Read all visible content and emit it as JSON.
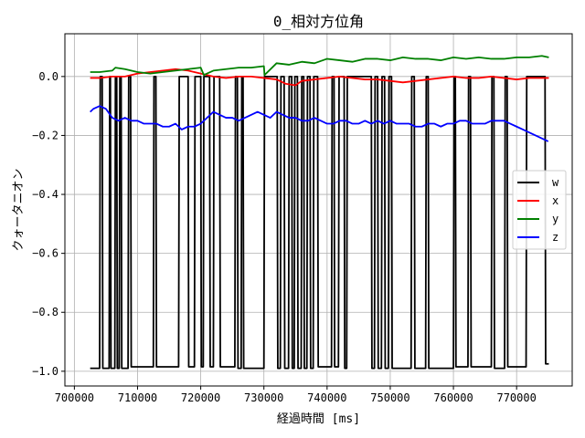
{
  "chart_data": {
    "type": "line",
    "title": "0_相対方位角",
    "xlabel": "経過時間 [ms]",
    "ylabel": "クォータニオン",
    "xlim": [
      698500,
      778800
    ],
    "ylim": [
      -1.05,
      0.145
    ],
    "x_ticks": [
      700000,
      710000,
      720000,
      730000,
      740000,
      750000,
      760000,
      770000
    ],
    "x_tick_labels": [
      "700000",
      "710000",
      "720000",
      "730000",
      "740000",
      "750000",
      "760000",
      "770000"
    ],
    "y_ticks": [
      0.0,
      -0.2,
      -0.4,
      -0.6,
      -0.8,
      -1.0
    ],
    "y_tick_labels": [
      "0.0",
      "−0.2",
      "−0.4",
      "−0.6",
      "−0.8",
      "−1.0"
    ],
    "grid": true,
    "legend_position": "center-right",
    "series": [
      {
        "name": "w",
        "color": "#000000",
        "x": [
          702500,
          704000,
          704100,
          704400,
          704500,
          705500,
          705600,
          705700,
          705800,
          706400,
          706500,
          706700,
          706800,
          707100,
          707200,
          707400,
          707500,
          708500,
          708600,
          708900,
          709000,
          712500,
          712600,
          712900,
          713000,
          716500,
          716600,
          718000,
          718100,
          719000,
          719100,
          720000,
          720100,
          720400,
          720500,
          721400,
          721500,
          722000,
          722100,
          723000,
          723100,
          725400,
          725500,
          725800,
          725900,
          726400,
          726500,
          726700,
          726800,
          730000,
          730100,
          732100,
          732200,
          732600,
          732700,
          733200,
          733300,
          733900,
          734000,
          734400,
          734500,
          734800,
          734900,
          735300,
          735400,
          735900,
          736000,
          736300,
          736400,
          736800,
          736900,
          737300,
          737400,
          737800,
          737900,
          738500,
          738600,
          740700,
          740800,
          741100,
          741200,
          741800,
          741900,
          742700,
          742800,
          743100,
          743200,
          747000,
          747100,
          747500,
          747600,
          748000,
          748100,
          748600,
          748700,
          749100,
          749200,
          749700,
          749800,
          750200,
          750300,
          753300,
          753400,
          753800,
          753900,
          755600,
          755700,
          756000,
          756100,
          760000,
          760100,
          760300,
          760400,
          762300,
          762400,
          762700,
          762800,
          766000,
          766100,
          766400,
          766500,
          768100,
          768200,
          768500,
          768600,
          771500,
          771600,
          774500,
          774600,
          775100
        ],
        "y": [
          -0.99,
          -0.99,
          0.0,
          0.0,
          -0.99,
          -0.99,
          0.0,
          0.0,
          -0.99,
          -0.99,
          0.0,
          0.0,
          -0.99,
          -0.99,
          0.0,
          0.0,
          -0.99,
          -0.99,
          0.0,
          0.0,
          -0.985,
          -0.985,
          0.0,
          0.0,
          -0.985,
          -0.985,
          0.0,
          0.0,
          -0.985,
          -0.985,
          0.0,
          0.0,
          -0.985,
          -0.985,
          0.0,
          0.0,
          -0.985,
          -0.985,
          0.0,
          0.0,
          -0.985,
          -0.985,
          0.0,
          0.0,
          -0.99,
          -0.99,
          0.0,
          0.0,
          -0.99,
          -0.99,
          0.0,
          0.0,
          -0.99,
          -0.99,
          0.0,
          0.0,
          -0.99,
          -0.99,
          0.0,
          0.0,
          -0.99,
          -0.99,
          0.0,
          0.0,
          -0.99,
          -0.99,
          0.0,
          0.0,
          -0.99,
          -0.99,
          0.0,
          0.0,
          -0.99,
          -0.99,
          0.0,
          0.0,
          -0.985,
          -0.985,
          0.0,
          0.0,
          -0.985,
          -0.985,
          0.0,
          0.0,
          -0.99,
          -0.99,
          0.0,
          0.0,
          -0.99,
          -0.99,
          0.0,
          0.0,
          -0.99,
          -0.99,
          0.0,
          0.0,
          -0.99,
          -0.99,
          0.0,
          0.0,
          -0.99,
          -0.99,
          0.0,
          0.0,
          -0.99,
          -0.99,
          0.0,
          0.0,
          -0.99,
          -0.99,
          0.0,
          0.0,
          -0.985,
          -0.985,
          0.0,
          0.0,
          -0.985,
          -0.985,
          0.0,
          0.0,
          -0.99,
          -0.99,
          0.0,
          0.0,
          -0.985,
          -0.985,
          0.0,
          0.0,
          -0.975,
          -0.975
        ]
      },
      {
        "name": "x",
        "color": "#ff0000",
        "x": [
          702500,
          704000,
          706000,
          708000,
          710000,
          712000,
          714000,
          716000,
          718000,
          720000,
          722000,
          724000,
          726000,
          728000,
          730000,
          732000,
          733500,
          735000,
          736000,
          738000,
          740000,
          742000,
          744000,
          746000,
          748000,
          750000,
          752000,
          754000,
          756000,
          758000,
          760000,
          762000,
          764000,
          766000,
          768000,
          770000,
          772000,
          774000,
          775100
        ],
        "y": [
          -0.005,
          -0.005,
          0.0,
          0.0,
          0.01,
          0.015,
          0.02,
          0.025,
          0.02,
          0.01,
          0.0,
          -0.005,
          0.0,
          0.0,
          -0.005,
          -0.01,
          -0.025,
          -0.03,
          -0.015,
          -0.01,
          -0.005,
          0.0,
          -0.005,
          -0.01,
          -0.01,
          -0.015,
          -0.02,
          -0.015,
          -0.01,
          -0.005,
          0.0,
          -0.005,
          -0.005,
          0.0,
          -0.005,
          -0.01,
          -0.005,
          -0.005,
          -0.005
        ]
      },
      {
        "name": "y",
        "color": "#008000",
        "x": [
          702500,
          704000,
          706000,
          706500,
          708000,
          710000,
          712000,
          714000,
          716000,
          718000,
          720000,
          720500,
          722000,
          724000,
          726000,
          728000,
          730000,
          730100,
          732000,
          734000,
          736000,
          738000,
          740000,
          742000,
          744000,
          746000,
          748000,
          750000,
          752000,
          754000,
          756000,
          758000,
          760000,
          762000,
          764000,
          766000,
          768000,
          770000,
          772000,
          774000,
          775100
        ],
        "y": [
          0.015,
          0.015,
          0.02,
          0.03,
          0.025,
          0.015,
          0.01,
          0.015,
          0.02,
          0.025,
          0.03,
          0.005,
          0.02,
          0.025,
          0.03,
          0.03,
          0.035,
          0.005,
          0.045,
          0.04,
          0.05,
          0.045,
          0.06,
          0.055,
          0.05,
          0.06,
          0.06,
          0.055,
          0.065,
          0.06,
          0.06,
          0.055,
          0.065,
          0.06,
          0.065,
          0.06,
          0.06,
          0.065,
          0.065,
          0.07,
          0.065
        ]
      },
      {
        "name": "z",
        "color": "#0000ff",
        "x": [
          702500,
          703000,
          704000,
          705000,
          706000,
          707000,
          708000,
          709000,
          710000,
          711000,
          712000,
          713000,
          714000,
          715000,
          716000,
          717000,
          718000,
          719000,
          720000,
          721000,
          722000,
          723000,
          724000,
          725000,
          726000,
          727000,
          728000,
          729000,
          730000,
          731000,
          732000,
          733000,
          734000,
          735000,
          736000,
          737000,
          738000,
          739000,
          740000,
          741000,
          742000,
          743000,
          744000,
          745000,
          746000,
          747000,
          748000,
          749000,
          750000,
          751000,
          752000,
          753000,
          754000,
          755000,
          756000,
          757000,
          758000,
          759000,
          760000,
          761000,
          762000,
          763000,
          764000,
          765000,
          766000,
          767000,
          768000,
          769000,
          770000,
          771000,
          772000,
          773000,
          774000,
          775000
        ],
        "y": [
          -0.12,
          -0.11,
          -0.1,
          -0.11,
          -0.14,
          -0.15,
          -0.14,
          -0.15,
          -0.15,
          -0.16,
          -0.16,
          -0.16,
          -0.17,
          -0.17,
          -0.16,
          -0.18,
          -0.17,
          -0.17,
          -0.16,
          -0.14,
          -0.12,
          -0.13,
          -0.14,
          -0.14,
          -0.15,
          -0.14,
          -0.13,
          -0.12,
          -0.13,
          -0.14,
          -0.12,
          -0.13,
          -0.14,
          -0.14,
          -0.15,
          -0.15,
          -0.14,
          -0.15,
          -0.16,
          -0.16,
          -0.15,
          -0.15,
          -0.16,
          -0.16,
          -0.15,
          -0.16,
          -0.15,
          -0.16,
          -0.15,
          -0.16,
          -0.16,
          -0.16,
          -0.17,
          -0.17,
          -0.16,
          -0.16,
          -0.17,
          -0.16,
          -0.16,
          -0.15,
          -0.15,
          -0.16,
          -0.16,
          -0.16,
          -0.15,
          -0.15,
          -0.15,
          -0.16,
          -0.17,
          -0.18,
          -0.19,
          -0.2,
          -0.21,
          -0.22
        ]
      }
    ]
  }
}
